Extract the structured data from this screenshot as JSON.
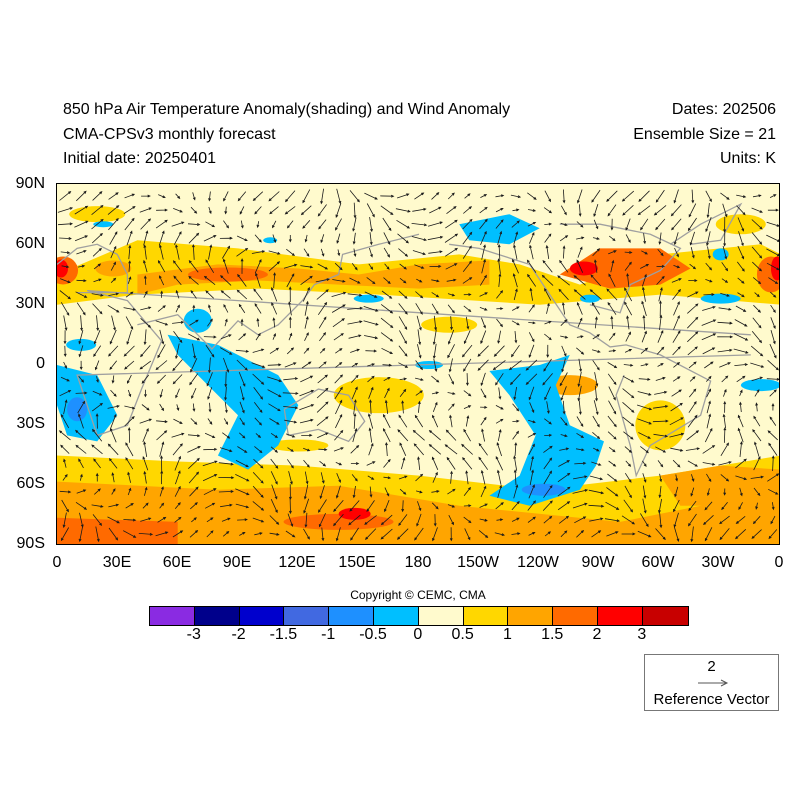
{
  "header": {
    "title": "850 hPa Air Temperature Anomaly(shading) and Wind Anomaly",
    "model": "CMA-CPSv3 monthly forecast",
    "initial_date": "Initial date: 20250401",
    "dates": "Dates: 202506",
    "ensemble": "Ensemble Size = 21",
    "units": "Units: K"
  },
  "map": {
    "lat_labels": [
      "90N",
      "60N",
      "30N",
      "0",
      "30S",
      "60S",
      "90S"
    ],
    "lon_labels": [
      "0",
      "30E",
      "60E",
      "90E",
      "120E",
      "150E",
      "180",
      "150W",
      "120W",
      "90W",
      "60W",
      "30W",
      "0"
    ],
    "background_color": "#fffacd",
    "coastline_color": "#a0a0a0",
    "vector_color": "#1a1a1a"
  },
  "copyright": "Copyright © CEMC, CMA",
  "colorbar": {
    "colors": [
      "#8a2be2",
      "#00008b",
      "#0000cd",
      "#4169e1",
      "#1e90ff",
      "#00bfff",
      "#fffacd",
      "#ffd700",
      "#ffa500",
      "#ff6a00",
      "#ff0000",
      "#c80000"
    ],
    "labels": [
      "-3",
      "-2",
      "-1.5",
      "-1",
      "-0.5",
      "0",
      "0.5",
      "1",
      "1.5",
      "2",
      "3"
    ]
  },
  "reference_vector": {
    "magnitude": "2",
    "label": "Reference Vector"
  }
}
